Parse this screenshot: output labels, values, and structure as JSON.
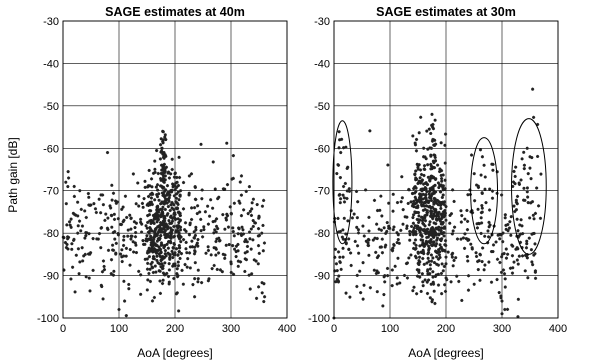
{
  "figure": {
    "shared_ylabel": "Path gain [dB]"
  },
  "chart_data": [
    {
      "type": "scatter",
      "title": "SAGE estimates at 40m",
      "xlabel": "AoA [degrees]",
      "ylabel": "Path gain [dB]",
      "xlim": [
        0,
        400
      ],
      "ylim": [
        -100,
        -30
      ],
      "xticks": [
        "0",
        "100",
        "200",
        "300",
        "400"
      ],
      "yticks": [
        "-30",
        "-40",
        "-50",
        "-60",
        "-70",
        "-80",
        "-90",
        "-100"
      ],
      "grid": true,
      "marker": "asterisk",
      "clusters": [
        {
          "x_range": [
            0,
            360
          ],
          "y_center": -80,
          "y_spread": 6.5,
          "count": 480
        },
        {
          "x_range": [
            150,
            210
          ],
          "y_center": -78,
          "y_spread": 7,
          "count": 360
        },
        {
          "x_range": [
            174,
            184
          ],
          "y_center": -68,
          "y_spread": 8,
          "count": 60
        }
      ],
      "points": [
        [
          178,
          -56
        ],
        [
          179,
          -58
        ],
        [
          177,
          -60
        ],
        [
          180,
          -62
        ],
        [
          176,
          -64
        ],
        [
          178,
          -66
        ],
        [
          200,
          -66
        ],
        [
          195,
          -65
        ],
        [
          190,
          -67
        ],
        [
          210,
          -70
        ],
        [
          100,
          -98
        ],
        [
          110,
          -96
        ],
        [
          235,
          -95
        ],
        [
          360,
          -95
        ],
        [
          5,
          -68
        ],
        [
          10,
          -67
        ],
        [
          20,
          -69
        ],
        [
          30,
          -70
        ],
        [
          225,
          -71
        ],
        [
          340,
          -72
        ],
        [
          350,
          -76
        ],
        [
          355,
          -80
        ]
      ],
      "annotations": []
    },
    {
      "type": "scatter",
      "title": "SAGE estimates at 30m",
      "xlabel": "AoA [degrees]",
      "ylabel": "",
      "xlim": [
        0,
        400
      ],
      "ylim": [
        -100,
        -30
      ],
      "xticks": [
        "0",
        "100",
        "200",
        "300",
        "400"
      ],
      "yticks": [
        "-30",
        "-40",
        "-50",
        "-60",
        "-70",
        "-80",
        "-90",
        "-100"
      ],
      "grid": true,
      "marker": "asterisk",
      "clusters": [
        {
          "x_range": [
            0,
            360
          ],
          "y_center": -82,
          "y_spread": 7,
          "count": 420
        },
        {
          "x_range": [
            140,
            200
          ],
          "y_center": -76,
          "y_spread": 8,
          "count": 380
        },
        {
          "x_range": [
            170,
            182
          ],
          "y_center": -66,
          "y_spread": 8,
          "count": 60
        },
        {
          "x_range": [
            250,
            285
          ],
          "y_center": -70,
          "y_spread": 5,
          "count": 20
        },
        {
          "x_range": [
            320,
            370
          ],
          "y_center": -68,
          "y_spread": 7,
          "count": 30
        },
        {
          "x_range": [
            5,
            25
          ],
          "y_center": -66,
          "y_spread": 6,
          "count": 14
        }
      ],
      "points": [
        [
          175,
          -52
        ],
        [
          176,
          -55
        ],
        [
          178,
          -58
        ],
        [
          174,
          -60
        ],
        [
          160,
          -62
        ],
        [
          265,
          -62
        ],
        [
          268,
          -64
        ],
        [
          345,
          -60
        ],
        [
          350,
          -62
        ],
        [
          340,
          -64
        ],
        [
          10,
          -58
        ],
        [
          12,
          -61
        ],
        [
          8,
          -64
        ],
        [
          300,
          -96
        ],
        [
          305,
          -98
        ],
        [
          300,
          -99
        ],
        [
          295,
          -94
        ],
        [
          0,
          -100
        ]
      ],
      "annotations": [
        {
          "shape": "ellipse",
          "cx": 15,
          "cy": -68,
          "rx": 17,
          "ry": 14.5
        },
        {
          "shape": "ellipse",
          "cx": 268,
          "cy": -70,
          "rx": 24,
          "ry": 12.5
        },
        {
          "shape": "ellipse",
          "cx": 348,
          "cy": -69,
          "rx": 31,
          "ry": 16
        }
      ]
    }
  ]
}
